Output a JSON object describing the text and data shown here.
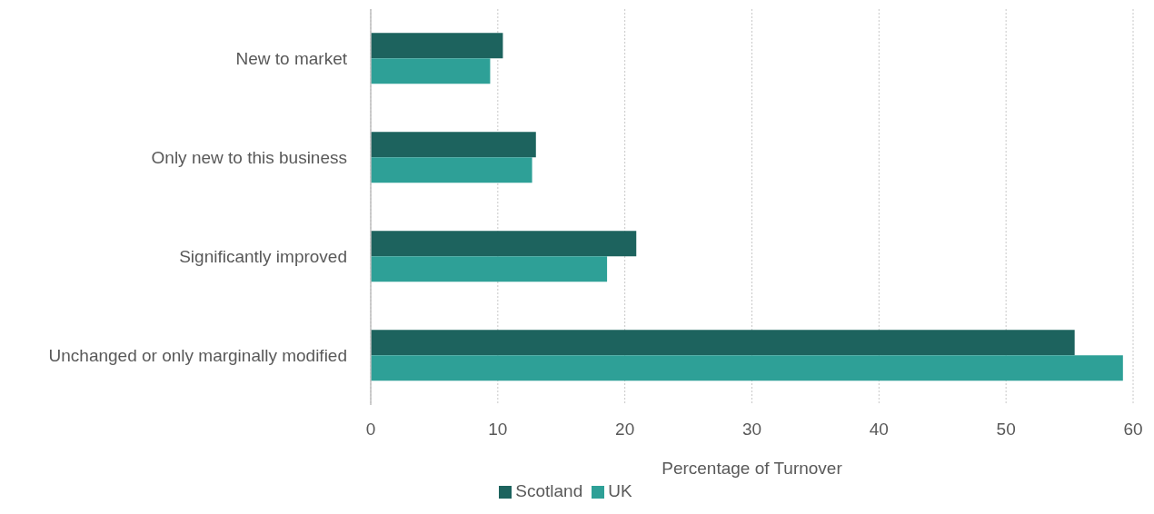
{
  "chart_data": {
    "type": "bar",
    "orientation": "horizontal",
    "categories": [
      "New to market",
      "Only new to this business",
      "Significantly improved",
      "Unchanged or only marginally modified"
    ],
    "series": [
      {
        "name": "Scotland",
        "color": "#1d635e",
        "values": [
          10.4,
          13.0,
          20.9,
          55.4
        ]
      },
      {
        "name": "UK",
        "color": "#2ea097",
        "values": [
          9.4,
          12.7,
          18.6,
          59.2
        ]
      }
    ],
    "xlabel": "Percentage of Turnover",
    "xlim": [
      0,
      60
    ],
    "xticks": [
      0,
      10,
      20,
      30,
      40,
      50,
      60
    ],
    "grid": "x",
    "legend": "bottom"
  }
}
